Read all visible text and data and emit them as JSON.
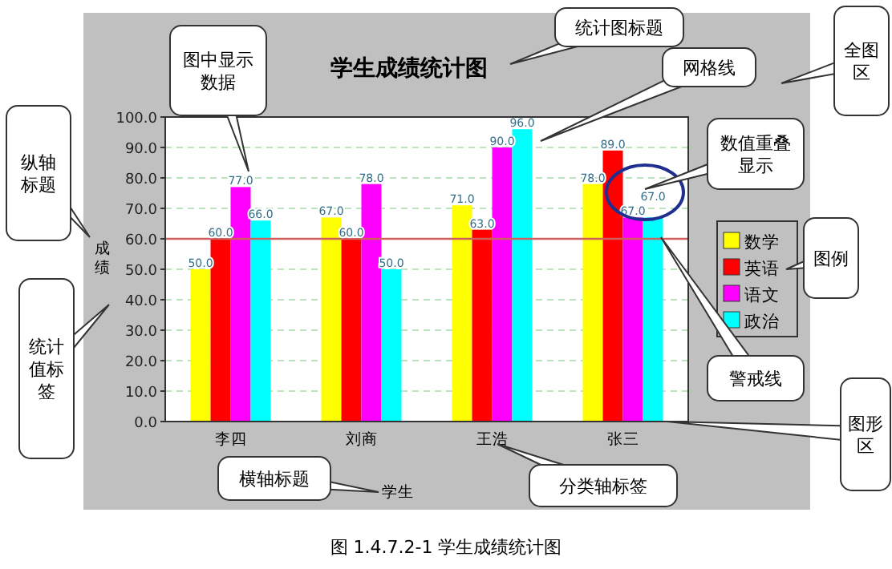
{
  "chart_data": {
    "type": "bar",
    "title": "学生成绩统计图",
    "xlabel": "学生",
    "ylabel": "成绩",
    "categories": [
      "李四",
      "刘商",
      "王浩",
      "张三"
    ],
    "series": [
      {
        "name": "数学",
        "color": "#ffff00",
        "values": [
          50,
          67,
          71,
          78
        ],
        "value_labels": [
          "50.0",
          "67.0",
          "71.0",
          "78.0"
        ]
      },
      {
        "name": "英语",
        "color": "#ff0000",
        "values": [
          60,
          60,
          63,
          89
        ],
        "value_labels": [
          "60.0",
          "60.0",
          "63.0",
          "89.0"
        ]
      },
      {
        "name": "语文",
        "color": "#ff00ff",
        "values": [
          77,
          78,
          90,
          67
        ],
        "value_labels": [
          "77.0",
          "78.0",
          "90.0",
          "67.0"
        ]
      },
      {
        "name": "政治",
        "color": "#00ffff",
        "values": [
          66,
          50,
          96,
          67
        ],
        "value_labels": [
          "66.0",
          "50.0",
          "96.0",
          "67.0"
        ]
      }
    ],
    "ylim": [
      0,
      100
    ],
    "yticks": [
      {
        "value": 0,
        "label": "0.0"
      },
      {
        "value": 10,
        "label": "10.0"
      },
      {
        "value": 20,
        "label": "20.0"
      },
      {
        "value": 30,
        "label": "30.0"
      },
      {
        "value": 40,
        "label": "40.0"
      },
      {
        "value": 50,
        "label": "50.0"
      },
      {
        "value": 60,
        "label": "60.0"
      },
      {
        "value": 70,
        "label": "70.0"
      },
      {
        "value": 80,
        "label": "80.0"
      },
      {
        "value": 90,
        "label": "90.0"
      },
      {
        "value": 100,
        "label": "100.0"
      }
    ],
    "grid": "y",
    "legend": "right",
    "ref_lines": [
      {
        "axis": "y",
        "value": 60,
        "color": "#d06060"
      }
    ],
    "annotations": [
      "图中显示数据",
      "统计图标题",
      "网格线",
      "全图区",
      "数值重叠显示",
      "纵轴标题",
      "统计值标签",
      "图例",
      "警戒线",
      "图形区",
      "横轴标题",
      "分类轴标签",
      "图 1.4.7.2-1 学生成绩统计图"
    ]
  }
}
